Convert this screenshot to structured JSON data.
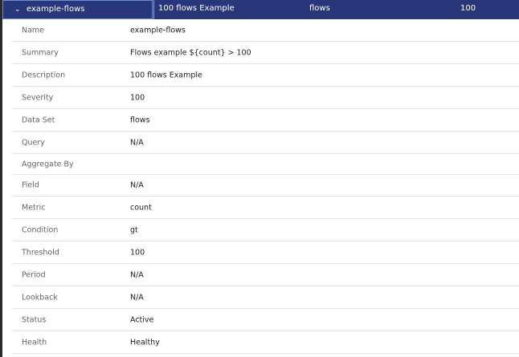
{
  "header": {
    "name": "example-flows",
    "description": "100 flows Example",
    "dataset": "flows",
    "severity": "100"
  },
  "details": [
    {
      "label": "Name",
      "value": "example-flows"
    },
    {
      "label": "Summary",
      "value": "Flows example ${count} > 100"
    },
    {
      "label": "Description",
      "value": "100 flows Example"
    },
    {
      "label": "Severity",
      "value": "100"
    },
    {
      "label": "Data Set",
      "value": "flows"
    },
    {
      "label": "Query",
      "value": "N/A"
    },
    {
      "label": "Aggregate By",
      "value": ""
    },
    {
      "label": "Field",
      "value": "N/A"
    },
    {
      "label": "Metric",
      "value": "count"
    },
    {
      "label": "Condition",
      "value": "gt"
    },
    {
      "label": "Threshold",
      "value": "100"
    },
    {
      "label": "Period",
      "value": "N/A"
    },
    {
      "label": "Lookback",
      "value": "N/A"
    },
    {
      "label": "Status",
      "value": "Active"
    },
    {
      "label": "Health",
      "value": "Healthy"
    }
  ]
}
